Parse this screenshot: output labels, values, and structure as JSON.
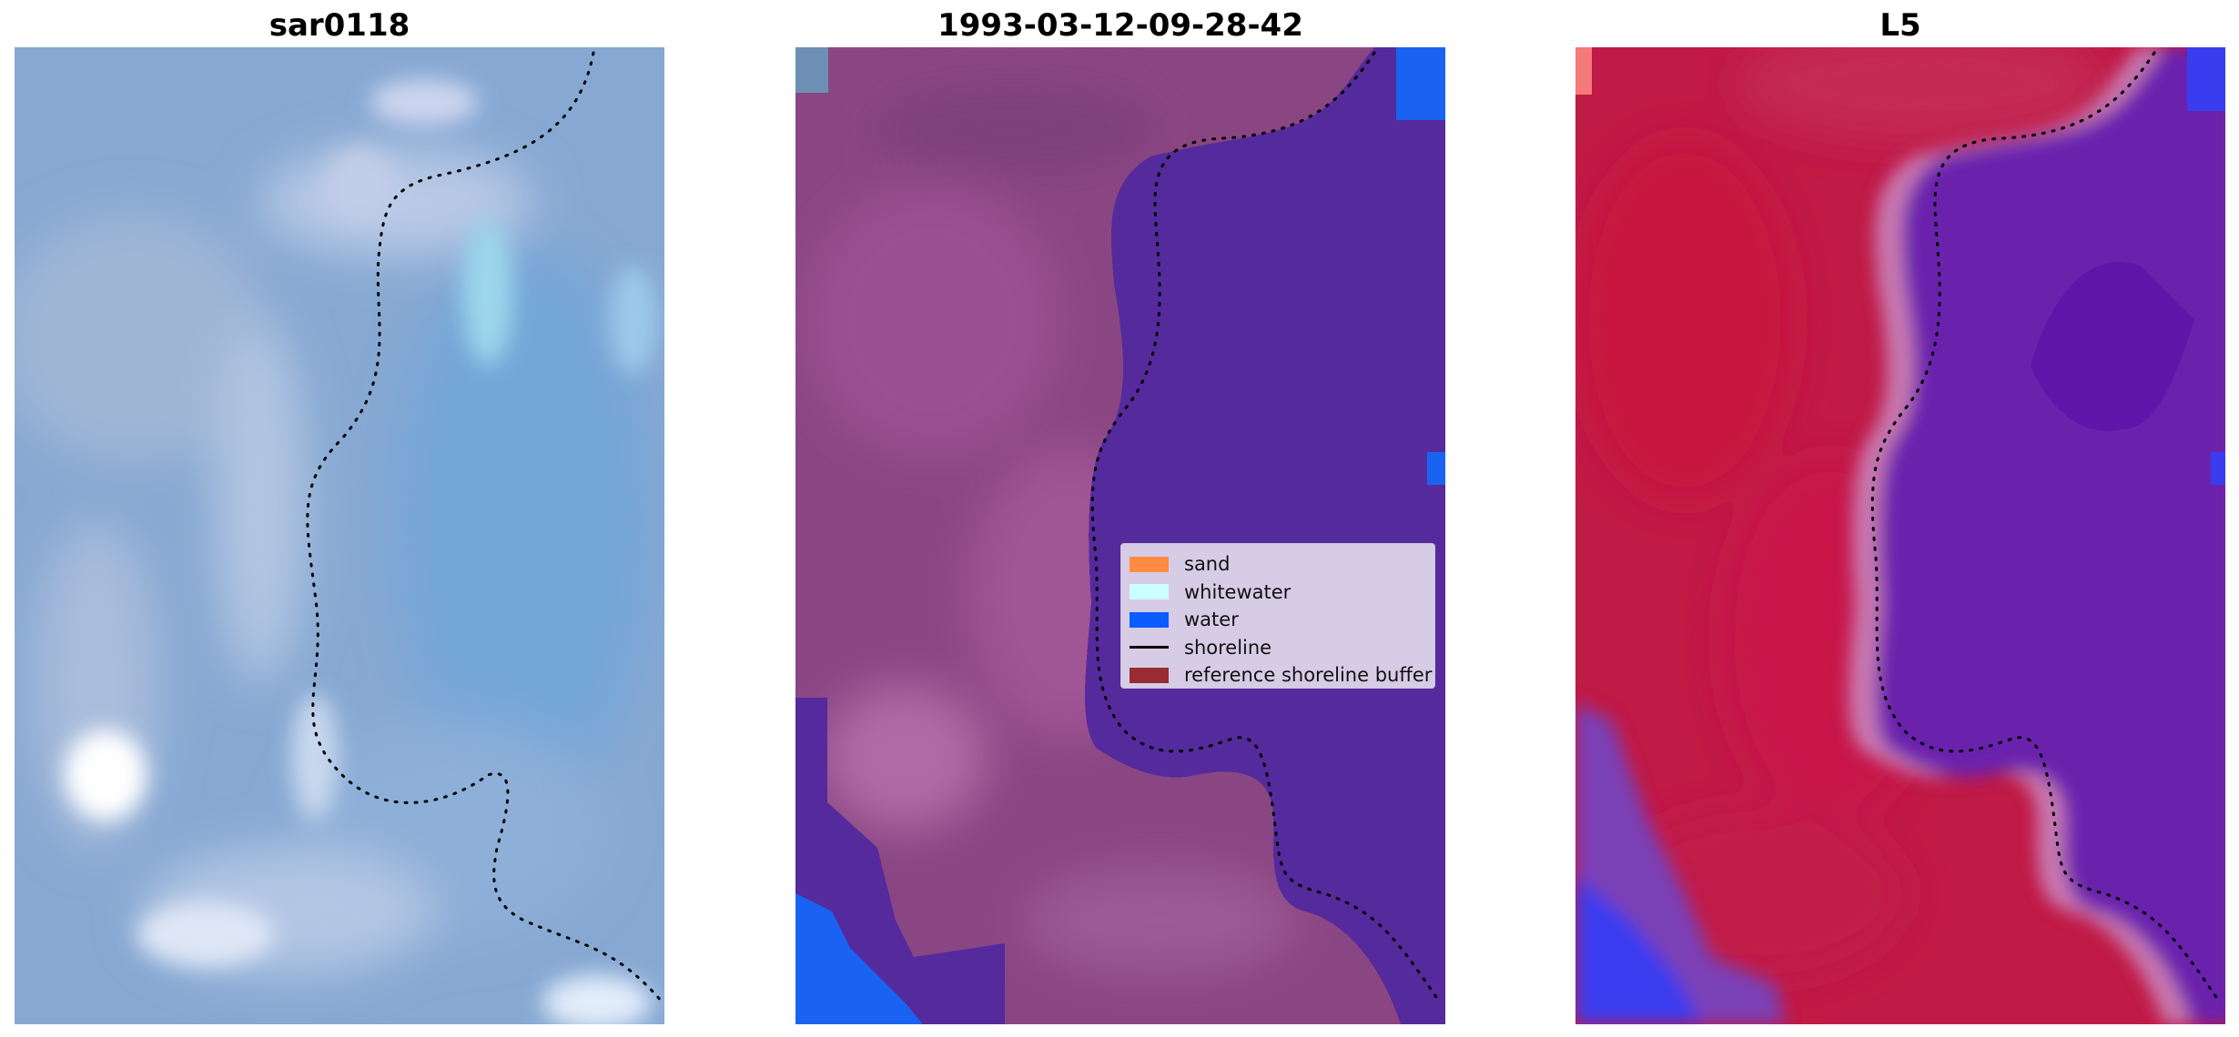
{
  "panels": [
    {
      "title": "sar0118"
    },
    {
      "title": "1993-03-12-09-28-42"
    },
    {
      "title": "L5"
    }
  ],
  "legend": {
    "items": [
      {
        "label": "sand",
        "color": "#ff8c40",
        "kind": "patch"
      },
      {
        "label": "whitewater",
        "color": "#ccffff",
        "kind": "patch"
      },
      {
        "label": "water",
        "color": "#0a5cff",
        "kind": "patch"
      },
      {
        "label": "shoreline",
        "color": "#000000",
        "kind": "line"
      },
      {
        "label": "reference shoreline buffer",
        "color": "#992b33",
        "kind": "patch"
      }
    ]
  },
  "colors": {
    "rgb_base": "#86a8d2",
    "class_land": "#8a4683",
    "class_water": "#552a9c",
    "class_bright_water": "#1a63f2",
    "index_land": "#c01a46",
    "index_water": "#5a0fa8",
    "index_edge": "#c879b0",
    "shoreline": "#000000"
  }
}
